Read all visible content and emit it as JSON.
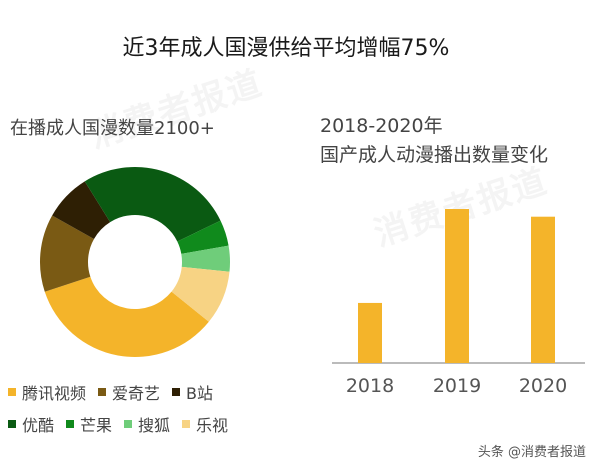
{
  "title": "近3年成人国漫供给平均增幅75%",
  "watermark": "消费者报道",
  "footer": "头条 @消费者报道",
  "chart_data": [
    {
      "type": "pie",
      "donut": true,
      "title": "在播成人国漫数量2100+",
      "legend_position": "bottom",
      "slices": [
        {
          "name": "腾讯视频",
          "value": 34.1,
          "color": "#f4b42a"
        },
        {
          "name": "爱奇艺",
          "value": 13.2,
          "color": "#7a5a14"
        },
        {
          "name": "B站",
          "value": 8.0,
          "color": "#2e1f04"
        },
        {
          "name": "优酷",
          "value": 26.7,
          "color": "#0a5a12"
        },
        {
          "name": "芒果",
          "value": 4.4,
          "color": "#108a1c"
        },
        {
          "name": "搜狐",
          "value": 4.4,
          "color": "#6fcd7a"
        },
        {
          "name": "乐视",
          "value": 9.2,
          "color": "#f7d384"
        }
      ]
    },
    {
      "type": "bar",
      "title": "2018-2020年",
      "subtitle": "国产成人动漫播出数量变化",
      "categories": [
        "2018",
        "2019",
        "2020"
      ],
      "values": [
        39,
        100,
        95
      ],
      "color": "#f4b42a",
      "grid": false
    }
  ]
}
